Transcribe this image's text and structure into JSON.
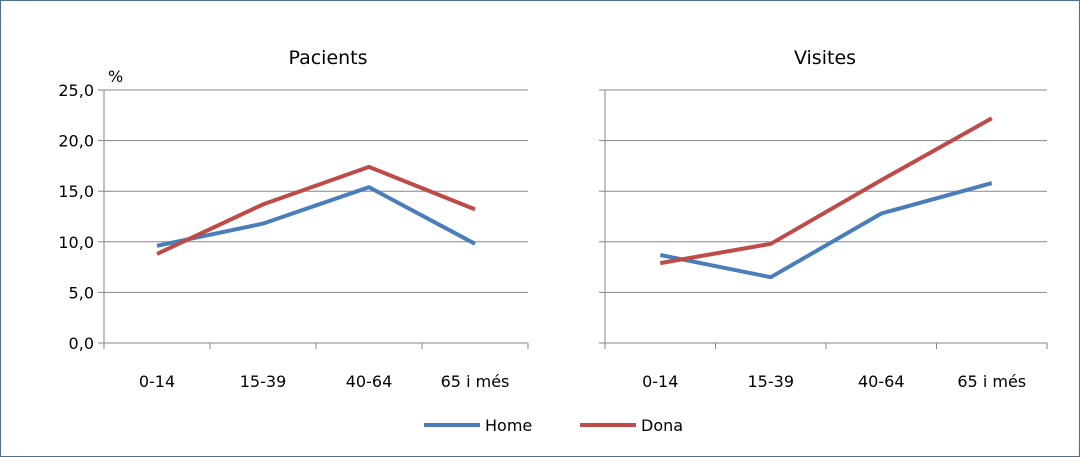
{
  "charts": {
    "unit_label": "%",
    "legend": {
      "home": "Home",
      "dona": "Dona"
    },
    "colors": {
      "home": "#4a7ebb",
      "dona": "#be4b48",
      "grid": "#868686",
      "axis": "#868686",
      "frame": "#4f6d8f"
    }
  },
  "chart_data": [
    {
      "type": "line",
      "title": "Pacients",
      "ylabel": "%",
      "categories": [
        "0-14",
        "15-39",
        "40-64",
        "65 i més"
      ],
      "ylim": [
        0,
        25
      ],
      "yticks": [
        "0,0",
        "5,0",
        "10,0",
        "15,0",
        "20,0",
        "25,0"
      ],
      "grid": true,
      "series": [
        {
          "name": "Home",
          "values": [
            9.6,
            11.8,
            15.4,
            9.8
          ]
        },
        {
          "name": "Dona",
          "values": [
            8.8,
            13.7,
            17.4,
            13.2
          ]
        }
      ]
    },
    {
      "type": "line",
      "title": "Visites",
      "categories": [
        "0-14",
        "15-39",
        "40-64",
        "65 i més"
      ],
      "ylim": [
        0,
        25
      ],
      "grid": true,
      "series": [
        {
          "name": "Home",
          "values": [
            8.7,
            6.5,
            12.8,
            15.8
          ]
        },
        {
          "name": "Dona",
          "values": [
            7.9,
            9.8,
            16.1,
            22.2
          ]
        }
      ]
    }
  ]
}
